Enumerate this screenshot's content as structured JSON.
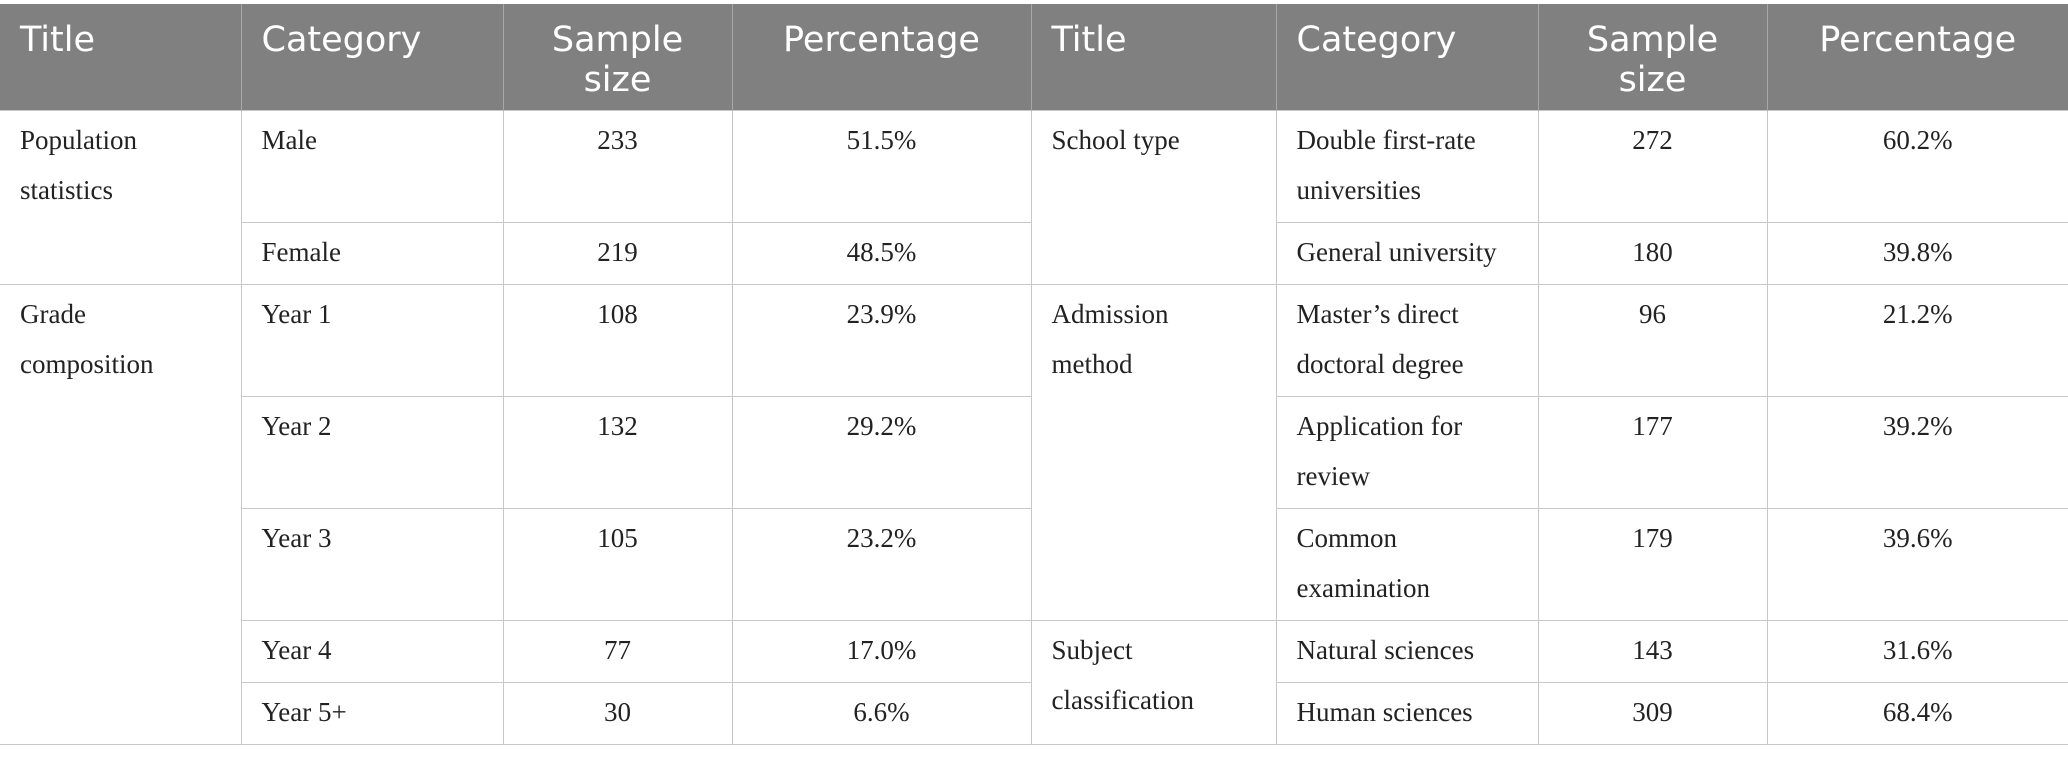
{
  "headers": [
    "Title",
    "Category",
    "Sample size",
    "Percentage",
    "Title",
    "Category",
    "Sample size",
    "Percentage"
  ],
  "left": [
    {
      "title": "Population statistics",
      "rows": [
        {
          "category": "Male",
          "sample": "233",
          "pct": "51.5%"
        },
        {
          "category": "Female",
          "sample": "219",
          "pct": "48.5%"
        }
      ]
    },
    {
      "title": "Grade composition",
      "rows": [
        {
          "category": "Year 1",
          "sample": "108",
          "pct": "23.9%"
        },
        {
          "category": "Year 2",
          "sample": "132",
          "pct": "29.2%"
        },
        {
          "category": "Year 3",
          "sample": "105",
          "pct": "23.2%"
        },
        {
          "category": "Year 4",
          "sample": "77",
          "pct": "17.0%"
        },
        {
          "category": "Year 5+",
          "sample": "30",
          "pct": "6.6%"
        }
      ]
    }
  ],
  "right": [
    {
      "title": "School type",
      "rows": [
        {
          "category": "Double first-rate universities",
          "sample": "272",
          "pct": "60.2%"
        },
        {
          "category": "General university",
          "sample": "180",
          "pct": "39.8%"
        }
      ]
    },
    {
      "title": "Admission method",
      "rows": [
        {
          "category": "Master’s direct doctoral degree",
          "sample": "96",
          "pct": "21.2%"
        },
        {
          "category": "Application for review",
          "sample": "177",
          "pct": "39.2%"
        },
        {
          "category": "Common examination",
          "sample": "179",
          "pct": "39.6%"
        }
      ]
    },
    {
      "title": "Subject classification",
      "rows": [
        {
          "category": "Natural sciences",
          "sample": "143",
          "pct": "31.6%"
        },
        {
          "category": "Human sciences",
          "sample": "309",
          "pct": "68.4%"
        }
      ]
    }
  ]
}
